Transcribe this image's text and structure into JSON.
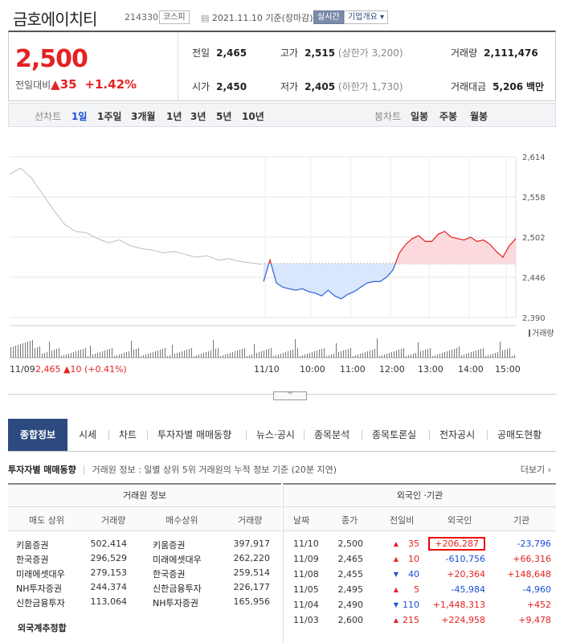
{
  "header": {
    "name": "금호에이치티",
    "code": "214330",
    "market": "코스피",
    "date_text": "2021.11.10 기준(장마감)",
    "realtime_label": "실시간",
    "company_button": "기업개요 ▾"
  },
  "summary": {
    "price": "2,500",
    "change_label": "전일대비",
    "change_value": "35",
    "change_pct": "+1.42%",
    "prev_label": "전일",
    "prev": "2,465",
    "open_label": "시가",
    "open": "2,450",
    "high_label": "고가",
    "high": "2,515",
    "upper_limit": "(상한가 3,200)",
    "low_label": "저가",
    "low": "2,405",
    "lower_limit": "(하한가 1,730)",
    "volume_label": "거래량",
    "volume": "2,111,476",
    "amount_label": "거래대금",
    "amount": "5,206",
    "amount_unit": "백만"
  },
  "period_bar": {
    "line_label": "선차트",
    "periods": [
      "1일",
      "1주일",
      "3개월",
      "1년",
      "3년",
      "5년",
      "10년"
    ],
    "candle_label": "봉차트",
    "candles": [
      "일봉",
      "주봉",
      "월봉"
    ]
  },
  "chart_data": {
    "type": "line",
    "y_ticks": [
      "2,614",
      "2,558",
      "2,502",
      "2,446",
      "2,390"
    ],
    "ylim": [
      2390,
      2614
    ],
    "x_ticks": [
      "11/10",
      "10:00",
      "11:00",
      "12:00",
      "13:00",
      "14:00",
      "15:00"
    ],
    "baseline": 2465,
    "prev_day_label": "11/09",
    "prev_day_info": "2,465 ▲10 (+0.41%)",
    "volume_legend": "거래량",
    "series": [
      {
        "values": [
          2590,
          2598,
          2584,
          2562,
          2540,
          2520,
          2510,
          2508,
          2500,
          2494,
          2498,
          2490,
          2486,
          2484,
          2480,
          2482,
          2478,
          2474,
          2476,
          2470,
          2472,
          2468,
          2466,
          2464
        ]
      },
      {
        "values": [
          2440,
          2470,
          2438,
          2432,
          2430,
          2428,
          2430,
          2426,
          2424,
          2420,
          2428,
          2420,
          2416,
          2422,
          2426,
          2432,
          2438,
          2440,
          2440,
          2446,
          2456,
          2480,
          2492,
          2500,
          2504,
          2496,
          2496,
          2506,
          2510,
          2502,
          2500,
          2498,
          2502,
          2496,
          2498,
          2492,
          2482,
          2474,
          2490,
          2500
        ]
      }
    ]
  },
  "tabs": [
    "종합정보",
    "시세",
    "차트",
    "투자자별 매매동향",
    "뉴스·공시",
    "종목분석",
    "종목토론실",
    "전자공시",
    "공매도현황"
  ],
  "investor": {
    "title": "투자자별 매매동향",
    "desc": "거래원 정보 : 일별 상위 5위 거래원의 누적 정보 기준 (20분 지연)",
    "more": "더보기 ›",
    "broker_title": "거래원 정보",
    "foreign_title": "외국인 ·기관",
    "broker_headers": [
      "매도 상위",
      "거래량",
      "매수상위",
      "거래량"
    ],
    "foreign_headers": [
      "날짜",
      "종가",
      "전일비",
      "외국인",
      "기관"
    ],
    "broker_rows": [
      [
        "키움증권",
        "502,414",
        "키움증권",
        "397,917"
      ],
      [
        "한국증권",
        "296,529",
        "미래에셋대우",
        "262,220"
      ],
      [
        "미래에셋대우",
        "279,153",
        "한국증권",
        "259,514"
      ],
      [
        "NH투자증권",
        "244,374",
        "신한금융투자",
        "226,177"
      ],
      [
        "신한금융투자",
        "113,064",
        "NH투자증권",
        "165,956"
      ]
    ],
    "foreign_estimate": "외국계추정합",
    "foreign_rows": [
      {
        "date": "11/10",
        "close": "2,500",
        "dir": "▲",
        "diff": "35",
        "foreign": "+206,287",
        "inst": "-23,796"
      },
      {
        "date": "11/09",
        "close": "2,465",
        "dir": "▲",
        "diff": "10",
        "foreign": "-610,756",
        "inst": "+66,316"
      },
      {
        "date": "11/08",
        "close": "2,455",
        "dir": "▼",
        "diff": "40",
        "foreign": "+20,364",
        "inst": "+148,648"
      },
      {
        "date": "11/05",
        "close": "2,495",
        "dir": "▲",
        "diff": "5",
        "foreign": "-45,984",
        "inst": "-4,960"
      },
      {
        "date": "11/04",
        "close": "2,490",
        "dir": "▼",
        "diff": "110",
        "foreign": "+1,448,313",
        "inst": "+452"
      },
      {
        "date": "11/03",
        "close": "2,600",
        "dir": "▲",
        "diff": "215",
        "foreign": "+224,958",
        "inst": "+9,478"
      }
    ]
  }
}
